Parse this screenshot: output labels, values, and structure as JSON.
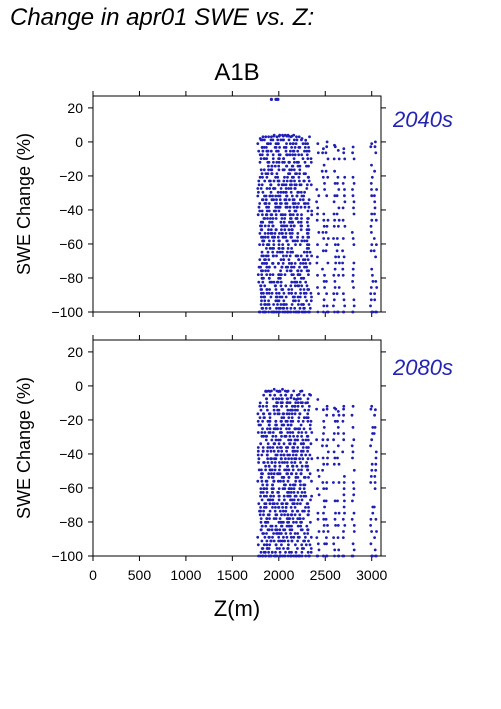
{
  "figure": {
    "title": "Change in apr01 SWE vs. Z:",
    "scenario": "A1B",
    "xlabel": "Z(m)",
    "point_color": "#1f1fb4",
    "period_label_color": "#2424b4"
  },
  "chart_data": [
    {
      "type": "scatter",
      "period_label": "2040s",
      "xlabel": "",
      "ylabel": "SWE Change (%)",
      "xlim": [
        0,
        3100
      ],
      "ylim": [
        -100,
        27
      ],
      "xticks": [
        0,
        500,
        1000,
        1500,
        2000,
        2500,
        3000
      ],
      "yticks": [
        20,
        0,
        -20,
        -40,
        -60,
        -80,
        -100
      ],
      "grid": false,
      "series": [
        {
          "color": "#1f1fb4",
          "columns": [
            {
              "x": 1800,
              "ymin": -100,
              "ymax": 2
            },
            {
              "x": 1830,
              "ymin": -100,
              "ymax": 3
            },
            {
              "x": 1860,
              "ymin": -100,
              "ymax": 3
            },
            {
              "x": 1890,
              "ymin": -100,
              "ymax": 3
            },
            {
              "x": 1920,
              "ymin": -100,
              "ymax": 3
            },
            {
              "x": 1950,
              "ymin": -100,
              "ymax": 4
            },
            {
              "x": 1980,
              "ymin": -100,
              "ymax": 3
            },
            {
              "x": 2010,
              "ymin": -100,
              "ymax": 4
            },
            {
              "x": 2040,
              "ymin": -100,
              "ymax": 4
            },
            {
              "x": 2070,
              "ymin": -100,
              "ymax": 4
            },
            {
              "x": 2100,
              "ymin": -100,
              "ymax": 4
            },
            {
              "x": 2130,
              "ymin": -100,
              "ymax": 3
            },
            {
              "x": 2160,
              "ymin": -100,
              "ymax": 4
            },
            {
              "x": 2190,
              "ymin": -100,
              "ymax": 3
            },
            {
              "x": 2220,
              "ymin": -100,
              "ymax": 3
            },
            {
              "x": 2250,
              "ymin": -100,
              "ymax": 2
            },
            {
              "x": 2290,
              "ymin": -100,
              "ymax": 1
            },
            {
              "x": 2330,
              "ymin": -100,
              "ymax": 3
            },
            {
              "x": 2420,
              "ymin": -100,
              "ymax": -1
            },
            {
              "x": 2480,
              "ymin": -100,
              "ymax": -4
            },
            {
              "x": 2520,
              "ymin": -100,
              "ymax": 0
            },
            {
              "x": 2600,
              "ymin": -100,
              "ymax": -2
            },
            {
              "x": 2640,
              "ymin": -100,
              "ymax": -5
            },
            {
              "x": 2700,
              "ymin": -100,
              "ymax": -4
            },
            {
              "x": 2800,
              "ymin": -100,
              "ymax": -3
            },
            {
              "x": 3000,
              "ymin": -100,
              "ymax": -1
            },
            {
              "x": 3040,
              "ymin": -100,
              "ymax": 0
            }
          ],
          "outliers": [
            {
              "x": 1920,
              "y": 25
            },
            {
              "x": 1970,
              "y": 25
            },
            {
              "x": 1990,
              "y": 25
            }
          ]
        }
      ]
    },
    {
      "type": "scatter",
      "period_label": "2080s",
      "xlabel": "Z(m)",
      "ylabel": "SWE Change (%)",
      "xlim": [
        0,
        3100
      ],
      "ylim": [
        -100,
        27
      ],
      "xticks": [
        0,
        500,
        1000,
        1500,
        2000,
        2500,
        3000
      ],
      "yticks": [
        20,
        0,
        -20,
        -40,
        -60,
        -80,
        -100
      ],
      "grid": false,
      "series": [
        {
          "color": "#1f1fb4",
          "columns": [
            {
              "x": 1800,
              "ymin": -100,
              "ymax": -10
            },
            {
              "x": 1830,
              "ymin": -100,
              "ymax": -12
            },
            {
              "x": 1860,
              "ymin": -100,
              "ymax": -3
            },
            {
              "x": 1890,
              "ymin": -100,
              "ymax": -3
            },
            {
              "x": 1920,
              "ymin": -100,
              "ymax": -3
            },
            {
              "x": 1950,
              "ymin": -100,
              "ymax": -2
            },
            {
              "x": 1980,
              "ymin": -100,
              "ymax": -3
            },
            {
              "x": 2010,
              "ymin": -100,
              "ymax": -3
            },
            {
              "x": 2040,
              "ymin": -100,
              "ymax": -2
            },
            {
              "x": 2070,
              "ymin": -100,
              "ymax": -3
            },
            {
              "x": 2100,
              "ymin": -100,
              "ymax": -3
            },
            {
              "x": 2130,
              "ymin": -100,
              "ymax": -7
            },
            {
              "x": 2160,
              "ymin": -100,
              "ymax": -3
            },
            {
              "x": 2190,
              "ymin": -100,
              "ymax": -8
            },
            {
              "x": 2220,
              "ymin": -100,
              "ymax": -5
            },
            {
              "x": 2250,
              "ymin": -100,
              "ymax": -3
            },
            {
              "x": 2290,
              "ymin": -100,
              "ymax": -10
            },
            {
              "x": 2330,
              "ymin": -100,
              "ymax": -5
            },
            {
              "x": 2420,
              "ymin": -100,
              "ymax": -8
            },
            {
              "x": 2480,
              "ymin": -100,
              "ymax": -14
            },
            {
              "x": 2520,
              "ymin": -100,
              "ymax": -12
            },
            {
              "x": 2600,
              "ymin": -100,
              "ymax": -13
            },
            {
              "x": 2640,
              "ymin": -100,
              "ymax": -15
            },
            {
              "x": 2700,
              "ymin": -100,
              "ymax": -12
            },
            {
              "x": 2800,
              "ymin": -100,
              "ymax": -12
            },
            {
              "x": 3000,
              "ymin": -100,
              "ymax": -12
            },
            {
              "x": 3040,
              "ymin": -100,
              "ymax": -14
            }
          ],
          "outliers": []
        }
      ]
    }
  ]
}
